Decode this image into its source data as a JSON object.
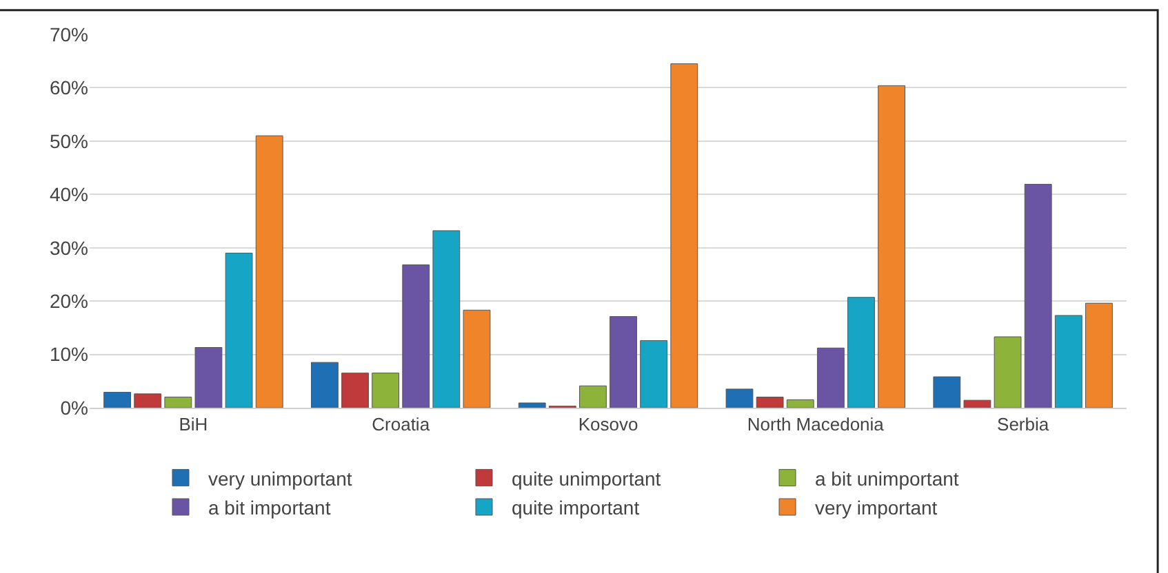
{
  "chart_data": {
    "type": "bar",
    "categories": [
      "BiH",
      "Croatia",
      "Kosovo",
      "North Macedonia",
      "Serbia"
    ],
    "ylim": [
      0,
      70
    ],
    "yticks": [
      {
        "value": 0,
        "label": "0%"
      },
      {
        "value": 10,
        "label": "10%"
      },
      {
        "value": 20,
        "label": "20%"
      },
      {
        "value": 30,
        "label": "30%"
      },
      {
        "value": 40,
        "label": "40%"
      },
      {
        "value": 50,
        "label": "50%"
      },
      {
        "value": 60,
        "label": "60%"
      },
      {
        "value": 70,
        "label": "70%"
      }
    ],
    "grid": "y",
    "legend": "bottom",
    "series": [
      {
        "name": "very unimportant",
        "color": "#1f6fb5",
        "values": [
          2.9,
          8.5,
          0.9,
          3.5,
          5.8
        ]
      },
      {
        "name": "quite unimportant",
        "color": "#c0393b",
        "values": [
          2.6,
          6.5,
          0.3,
          2.0,
          1.4
        ]
      },
      {
        "name": "a bit unimportant",
        "color": "#8db33a",
        "values": [
          2.0,
          6.5,
          4.1,
          1.5,
          13.3
        ]
      },
      {
        "name": "a bit important",
        "color": "#6a55a5",
        "values": [
          11.3,
          26.8,
          17.1,
          11.2,
          41.9
        ]
      },
      {
        "name": "quite important",
        "color": "#16a5c4",
        "values": [
          29.0,
          33.2,
          12.6,
          20.7,
          17.3
        ]
      },
      {
        "name": "very important",
        "color": "#f0842a",
        "values": [
          51.0,
          18.3,
          64.5,
          60.4,
          19.6
        ]
      }
    ]
  }
}
